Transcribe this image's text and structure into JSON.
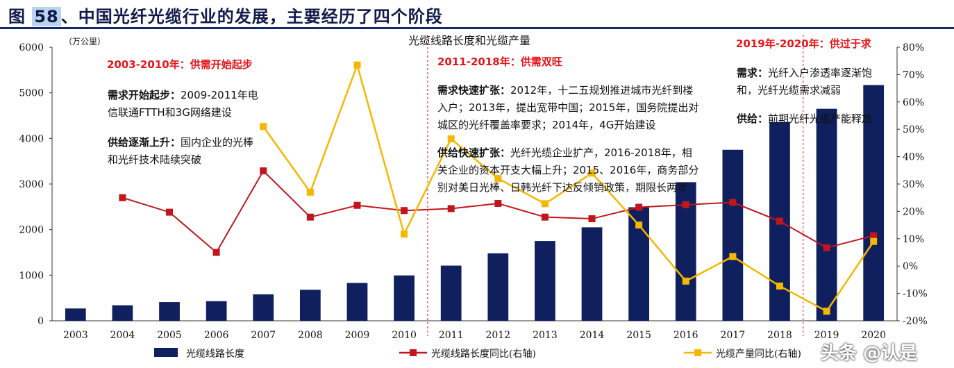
{
  "figure": {
    "label_prefix": "图 ",
    "number": "58",
    "title_rest": "、中国光纤光缆行业的发展，主要经历了四个阶段"
  },
  "chart_data": {
    "type": "bar+line",
    "title": "光缆线路长度和光缆产量",
    "y_left_unit": "（万公里）",
    "ylim_left": [
      0,
      6000
    ],
    "yticks_left": [
      "6000",
      "5000",
      "4000",
      "3000",
      "2000",
      "1000",
      "0"
    ],
    "ylim_right": [
      -20,
      80
    ],
    "yticks_right": [
      "80%",
      "70%",
      "60%",
      "50%",
      "40%",
      "30%",
      "20%",
      "10%",
      "0%",
      "-10%",
      "-20%"
    ],
    "categories": [
      "2003",
      "2004",
      "2005",
      "2006",
      "2007",
      "2008",
      "2009",
      "2010",
      "2011",
      "2012",
      "2013",
      "2014",
      "2015",
      "2016",
      "2017",
      "2018",
      "2019",
      "2020"
    ],
    "series": [
      {
        "name": "光缆线路长度",
        "kind": "bar",
        "axis": "left",
        "color": "#10205e",
        "values": [
          270,
          340,
          410,
          430,
          580,
          680,
          830,
          995,
          1210,
          1480,
          1750,
          2050,
          2490,
          3040,
          3750,
          4360,
          4650,
          5170
        ]
      },
      {
        "name": "光缆线路长度同比(右轴)",
        "kind": "line",
        "axis": "right",
        "color": "#c0161c",
        "marker": "square",
        "values": [
          null,
          25,
          19.7,
          5,
          34.8,
          17.9,
          22.2,
          20.3,
          21,
          22.9,
          17.9,
          17.3,
          21.5,
          22.4,
          23.3,
          16.4,
          6.7,
          11.1
        ]
      },
      {
        "name": "光缆产量同比(右轴)",
        "kind": "line",
        "axis": "right",
        "color": "#f5b800",
        "marker": "square",
        "values": [
          null,
          null,
          null,
          null,
          51,
          27,
          73.5,
          11.7,
          46.5,
          32,
          22.8,
          34,
          15,
          -5.5,
          3.5,
          -7.3,
          -16.5,
          9
        ]
      }
    ],
    "stage_dividers_after": [
      "2010",
      "2018"
    ],
    "legend_position": "bottom"
  },
  "annotations": {
    "stage1": {
      "header": "2003-2010年：供需开始起步",
      "demand_label": "需求开始起步：",
      "demand_line1": "2009-2011年电",
      "demand_line2": "信联通FTTH和3G网络建设",
      "supply_label": "供给逐渐上升：",
      "supply_line1": "国内企业的光棒",
      "supply_line2": "和光纤技术陆续突破"
    },
    "stage2": {
      "header": "2011-2018年：供需双旺",
      "demand_label": "需求快速扩张：",
      "demand_line1": "2012年，十二五规划推进城市光纤到楼",
      "demand_line2": "入户；2013年，提出宽带中国；2015年，国务院提出对",
      "demand_line3": "城区的光纤覆盖率要求；2014年，4G开始建设",
      "supply_label": "供给快速扩张：",
      "supply_line1": "光纤光缆企业扩产，2016-2018年，相",
      "supply_line2": "关企业的资本开支大幅上升；2015、2016年，商务部分",
      "supply_line3": "别对美日光棒、日韩光纤下达反倾销政策，期限长两年"
    },
    "stage3": {
      "header": "2019年-2020年：供过于求",
      "demand_label": "需求：",
      "demand_line1": "光纤入户渗透率逐渐饱",
      "demand_line2": "和，光纤光缆需求减弱",
      "supply_label": "供给：",
      "supply_line1": "前期光纤光缆产能释放"
    }
  },
  "watermark": "头条 @认是"
}
